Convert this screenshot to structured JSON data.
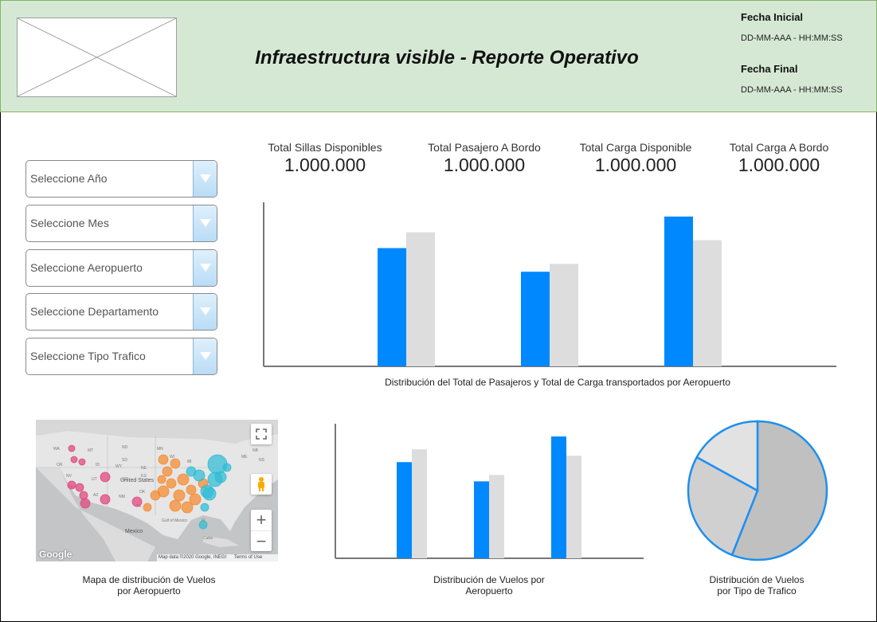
{
  "header": {
    "title": "Infraestructura visible - Reporte Operativo",
    "fecha_inicial_label": "Fecha Inicial",
    "fecha_inicial_value": "DD-MM-AAA - HH:MM:SS",
    "fecha_final_label": "Fecha Final",
    "fecha_final_value": "DD-MM-AAA - HH:MM:SS"
  },
  "filters": [
    {
      "label": "Seleccione Año"
    },
    {
      "label": "Seleccione Mes"
    },
    {
      "label": "Seleccione Aeropuerto"
    },
    {
      "label": "Seleccione Departamento"
    },
    {
      "label": "Seleccione Tipo Trafico"
    }
  ],
  "kpis": [
    {
      "title": "Total Sillas Disponibles",
      "value": "1.000.000"
    },
    {
      "title": "Total Pasajero A Bordo",
      "value": "1.000.000"
    },
    {
      "title": "Total Carga Disponible",
      "value": "1.000.000"
    },
    {
      "title": "Total Carga A Bordo",
      "value": "1.000.000"
    }
  ],
  "captions": {
    "main_chart": "Distribución del Total de Pasajeros y Total de Carga transportados por Aeropuerto",
    "map_line1": "Mapa de distribución de Vuelos",
    "map_line2": "por Aeropuerto",
    "flights_chart_line1": "Distribución de Vuelos por",
    "flights_chart_line2": "Aeropuerto",
    "pie_line1": "Distribución de Vuelos",
    "pie_line2": "por Tipo de Trafico"
  },
  "map": {
    "google_label": "Google",
    "attribution": "Map data ©2020 Google, INEGI",
    "terms": "Terms of Use",
    "zoom_in": "+",
    "zoom_out": "−",
    "place_labels": [
      "United States",
      "Mexico",
      "Gulf of Mexico",
      "Cuba",
      "WA",
      "MT",
      "ND",
      "OR",
      "ID",
      "SD",
      "WY",
      "NE",
      "NV",
      "UT",
      "CO",
      "KS",
      "CA",
      "AZ",
      "NM",
      "TX",
      "OK",
      "MN",
      "WI",
      "MI",
      "ME",
      "NB",
      "NS",
      "FL"
    ]
  },
  "colors": {
    "header_bg": "#d5e8d4",
    "bar_primary": "#0088ff",
    "bar_secondary": "#dddddd",
    "pie_stroke": "#1e8fef",
    "pie_large": "#c0c0c0",
    "pie_mid": "#d0d0d0",
    "pie_small": "#e2e2e2"
  },
  "chart_data": [
    {
      "type": "bar",
      "categories": [
        "",
        "",
        ""
      ],
      "series": [
        {
          "values": [
            75,
            60,
            95
          ]
        },
        {
          "values": [
            85,
            65,
            80
          ]
        }
      ],
      "ylim": [
        0,
        100
      ]
    },
    {
      "type": "bar",
      "categories": [
        "",
        "",
        ""
      ],
      "series": [
        {
          "values": [
            75,
            60,
            95
          ]
        },
        {
          "values": [
            85,
            65,
            80
          ]
        }
      ],
      "ylim": [
        0,
        100
      ]
    },
    {
      "type": "pie",
      "values": [
        56,
        27,
        17
      ]
    }
  ]
}
